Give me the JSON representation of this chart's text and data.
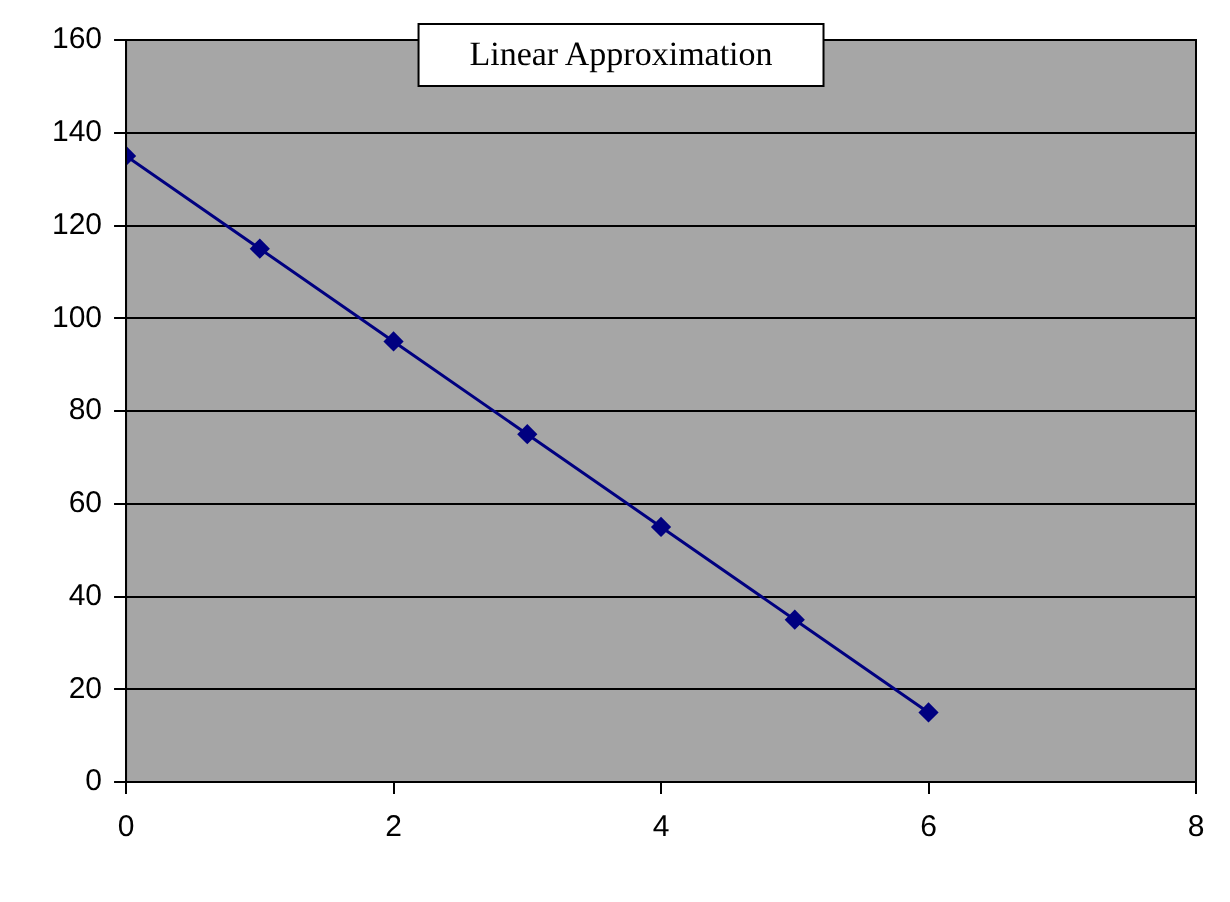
{
  "chart_data": {
    "type": "scatter",
    "title": "Linear Approximation",
    "x": [
      0,
      1,
      2,
      3,
      4,
      5,
      6
    ],
    "series": [
      {
        "type": "line",
        "color": "#000080",
        "values": [
          135,
          115,
          95,
          75,
          55,
          35,
          15
        ]
      }
    ],
    "xlim": [
      0,
      8
    ],
    "xticks": [
      0,
      2,
      4,
      6,
      8
    ],
    "ylim": [
      0,
      160
    ],
    "yticks": [
      0,
      20,
      40,
      60,
      80,
      100,
      120,
      140,
      160
    ],
    "grid": "y",
    "legend": false,
    "marker": "diamond",
    "line_style": "solid"
  }
}
